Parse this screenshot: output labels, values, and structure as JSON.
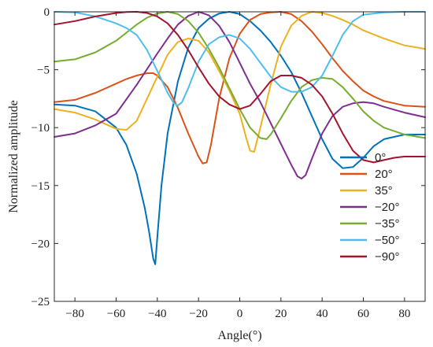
{
  "chart_data": {
    "type": "line",
    "title": "",
    "xlabel": "Angle(°)",
    "ylabel": "Normalized amplitude",
    "xlim": [
      -90,
      90
    ],
    "ylim": [
      -25,
      0
    ],
    "xticks": [
      -80,
      -60,
      -40,
      -20,
      0,
      20,
      40,
      60,
      80
    ],
    "yticks": [
      0,
      -5,
      -10,
      -15,
      -20,
      -25
    ],
    "xtick_labels": [
      "−80",
      "−60",
      "−40",
      "−20",
      "0",
      "20",
      "40",
      "60",
      "80"
    ],
    "ytick_labels": [
      "0",
      "−5",
      "−10",
      "−15",
      "−20",
      "−25"
    ],
    "grid": false,
    "legend": "bottom-right",
    "series": [
      {
        "name": "0°",
        "color": "#0072BD",
        "x": [
          -90,
          -80,
          -70,
          -60,
          -55,
          -50,
          -46,
          -44,
          -42,
          -41,
          -40,
          -38,
          -35,
          -30,
          -25,
          -20,
          -15,
          -10,
          -5,
          0,
          5,
          10,
          15,
          20,
          25,
          30,
          35,
          40,
          45,
          50,
          55,
          60,
          65,
          70,
          80,
          90
        ],
        "y": [
          -8,
          -8.1,
          -8.6,
          -10,
          -11.5,
          -14,
          -17,
          -19,
          -21.3,
          -21.8,
          -19.5,
          -15,
          -10.5,
          -6,
          -3.1,
          -1.4,
          -0.6,
          -0.15,
          0,
          -0.2,
          -0.8,
          -1.6,
          -2.6,
          -3.8,
          -5.2,
          -7,
          -9,
          -11,
          -12.7,
          -13.5,
          -13.4,
          -12.6,
          -11.6,
          -11,
          -10.6,
          -10.6
        ]
      },
      {
        "name": "20°",
        "color": "#D95319",
        "x": [
          -90,
          -80,
          -70,
          -60,
          -55,
          -50,
          -45,
          -42,
          -40,
          -35,
          -30,
          -25,
          -20,
          -18,
          -16,
          -14,
          -10,
          -5,
          0,
          5,
          10,
          15,
          20,
          25,
          30,
          35,
          40,
          45,
          50,
          55,
          60,
          65,
          70,
          80,
          90
        ],
        "y": [
          -7.8,
          -7.6,
          -7,
          -6.2,
          -5.8,
          -5.5,
          -5.3,
          -5.3,
          -5.5,
          -6.5,
          -8.3,
          -10.5,
          -12.5,
          -13.1,
          -13,
          -11.5,
          -7.5,
          -4,
          -1.9,
          -0.7,
          -0.2,
          -0.05,
          0,
          -0.2,
          -0.8,
          -1.7,
          -2.8,
          -4,
          -5.1,
          -6,
          -6.8,
          -7.3,
          -7.7,
          -8.1,
          -8.2
        ]
      },
      {
        "name": "35°",
        "color": "#EDB120",
        "x": [
          -90,
          -80,
          -70,
          -60,
          -55,
          -50,
          -45,
          -40,
          -35,
          -30,
          -25,
          -20,
          -15,
          -10,
          -5,
          0,
          3,
          5,
          7,
          10,
          15,
          20,
          25,
          30,
          35,
          40,
          45,
          50,
          55,
          60,
          70,
          80,
          90
        ],
        "y": [
          -8.4,
          -8.7,
          -9.3,
          -10.1,
          -10.2,
          -9.4,
          -7.5,
          -5.6,
          -3.7,
          -2.6,
          -2.3,
          -2.5,
          -3.5,
          -5.1,
          -6.8,
          -8.8,
          -10.8,
          -12,
          -12.1,
          -10,
          -6.3,
          -3,
          -1.2,
          -0.35,
          0,
          -0.1,
          -0.35,
          -0.7,
          -1.1,
          -1.6,
          -2.3,
          -2.9,
          -3.2
        ]
      },
      {
        "name": "−20°",
        "color": "#7E2F8E",
        "x": [
          -90,
          -80,
          -70,
          -60,
          -50,
          -40,
          -35,
          -30,
          -25,
          -20,
          -15,
          -10,
          -5,
          0,
          5,
          10,
          15,
          20,
          25,
          28,
          30,
          32,
          35,
          40,
          45,
          50,
          55,
          60,
          65,
          70,
          80,
          90
        ],
        "y": [
          -10.8,
          -10.5,
          -9.8,
          -8.8,
          -6.3,
          -3.6,
          -2.3,
          -1.1,
          -0.35,
          0,
          -0.3,
          -1.2,
          -2.6,
          -4.4,
          -6.2,
          -7.8,
          -9.6,
          -11.4,
          -13.2,
          -14.2,
          -14.4,
          -14.1,
          -12.7,
          -10.5,
          -9,
          -8.2,
          -7.9,
          -7.8,
          -7.9,
          -8.2,
          -8.7,
          -9.1
        ]
      },
      {
        "name": "−35°",
        "color": "#77AC30",
        "x": [
          -90,
          -80,
          -70,
          -60,
          -55,
          -50,
          -45,
          -40,
          -35,
          -30,
          -25,
          -20,
          -15,
          -10,
          -5,
          0,
          5,
          10,
          13,
          15,
          20,
          25,
          30,
          35,
          40,
          45,
          50,
          55,
          60,
          65,
          70,
          80,
          90
        ],
        "y": [
          -4.3,
          -4.1,
          -3.5,
          -2.5,
          -1.8,
          -1.1,
          -0.5,
          -0.15,
          0,
          -0.2,
          -0.8,
          -1.8,
          -3.2,
          -4.8,
          -6.6,
          -8.4,
          -10,
          -10.9,
          -11,
          -10.6,
          -9.2,
          -7.7,
          -6.5,
          -5.9,
          -5.7,
          -5.8,
          -6.5,
          -7.5,
          -8.6,
          -9.4,
          -10,
          -10.6,
          -10.9
        ]
      },
      {
        "name": "−50°",
        "color": "#4DBEEE",
        "x": [
          -90,
          -80,
          -70,
          -65,
          -60,
          -55,
          -50,
          -45,
          -40,
          -35,
          -32,
          -30,
          -28,
          -25,
          -20,
          -15,
          -10,
          -5,
          0,
          5,
          10,
          15,
          20,
          25,
          30,
          35,
          40,
          45,
          50,
          55,
          60,
          70,
          80,
          90
        ],
        "y": [
          0,
          -0.05,
          -0.4,
          -0.7,
          -1,
          -1.4,
          -2,
          -3.3,
          -5.1,
          -7,
          -7.9,
          -8.1,
          -7.8,
          -6.6,
          -4.3,
          -2.8,
          -2.2,
          -2,
          -2.3,
          -3.2,
          -4.4,
          -5.6,
          -6.5,
          -6.9,
          -6.9,
          -6.5,
          -5.5,
          -3.8,
          -2,
          -0.8,
          -0.25,
          -0.05,
          0,
          0
        ]
      },
      {
        "name": "−90°",
        "color": "#A2142F",
        "x": [
          -90,
          -80,
          -70,
          -60,
          -55,
          -50,
          -45,
          -40,
          -35,
          -30,
          -25,
          -20,
          -15,
          -10,
          -5,
          0,
          5,
          10,
          15,
          20,
          25,
          30,
          35,
          40,
          45,
          50,
          55,
          60,
          65,
          70,
          75,
          80,
          90
        ],
        "y": [
          -1.1,
          -0.8,
          -0.4,
          -0.1,
          -0.02,
          0,
          -0.1,
          -0.4,
          -1,
          -2,
          -3.3,
          -4.8,
          -6.2,
          -7.3,
          -8,
          -8.4,
          -8.1,
          -7.1,
          -6,
          -5.5,
          -5.5,
          -5.7,
          -6.3,
          -7.3,
          -8.8,
          -10.5,
          -12,
          -12.8,
          -13,
          -12.8,
          -12.6,
          -12.5,
          -12.5
        ]
      }
    ]
  }
}
